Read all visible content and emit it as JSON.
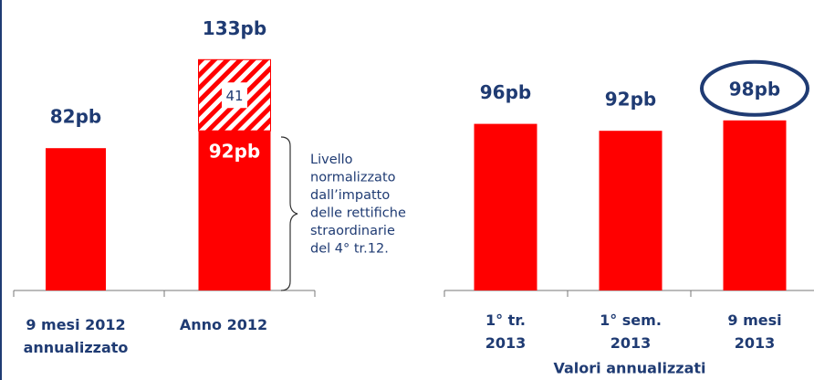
{
  "chart_data": {
    "type": "bar",
    "categories": [
      "9 mesi 2012\nannualizzato",
      "Anno 2012",
      "1° tr.\n2013",
      "1° sem.\n2013",
      "9 mesi\n2013"
    ],
    "series": [
      {
        "color": "#ff0000",
        "values": [
          82,
          92,
          96,
          92,
          98
        ],
        "value_labels": [
          "82pb",
          "92pb",
          "96pb",
          "92pb",
          "98pb"
        ]
      },
      {
        "color": "#ff0000",
        "hatch": true,
        "values": [
          null,
          41,
          null,
          null,
          null
        ],
        "value_labels": [
          null,
          "41",
          null,
          null,
          null
        ]
      }
    ],
    "totals": {
      "values": [
        null,
        133,
        null,
        null,
        null
      ],
      "labels": [
        null,
        "133pb",
        null,
        null,
        null
      ]
    },
    "annotation": [
      "Livello",
      "normalizzato",
      "dall’impatto",
      "delle rettifiche",
      "straordinarie",
      "del 4°   tr.12."
    ],
    "group_label": "Valori annualizzati",
    "highlight_index": 4
  }
}
